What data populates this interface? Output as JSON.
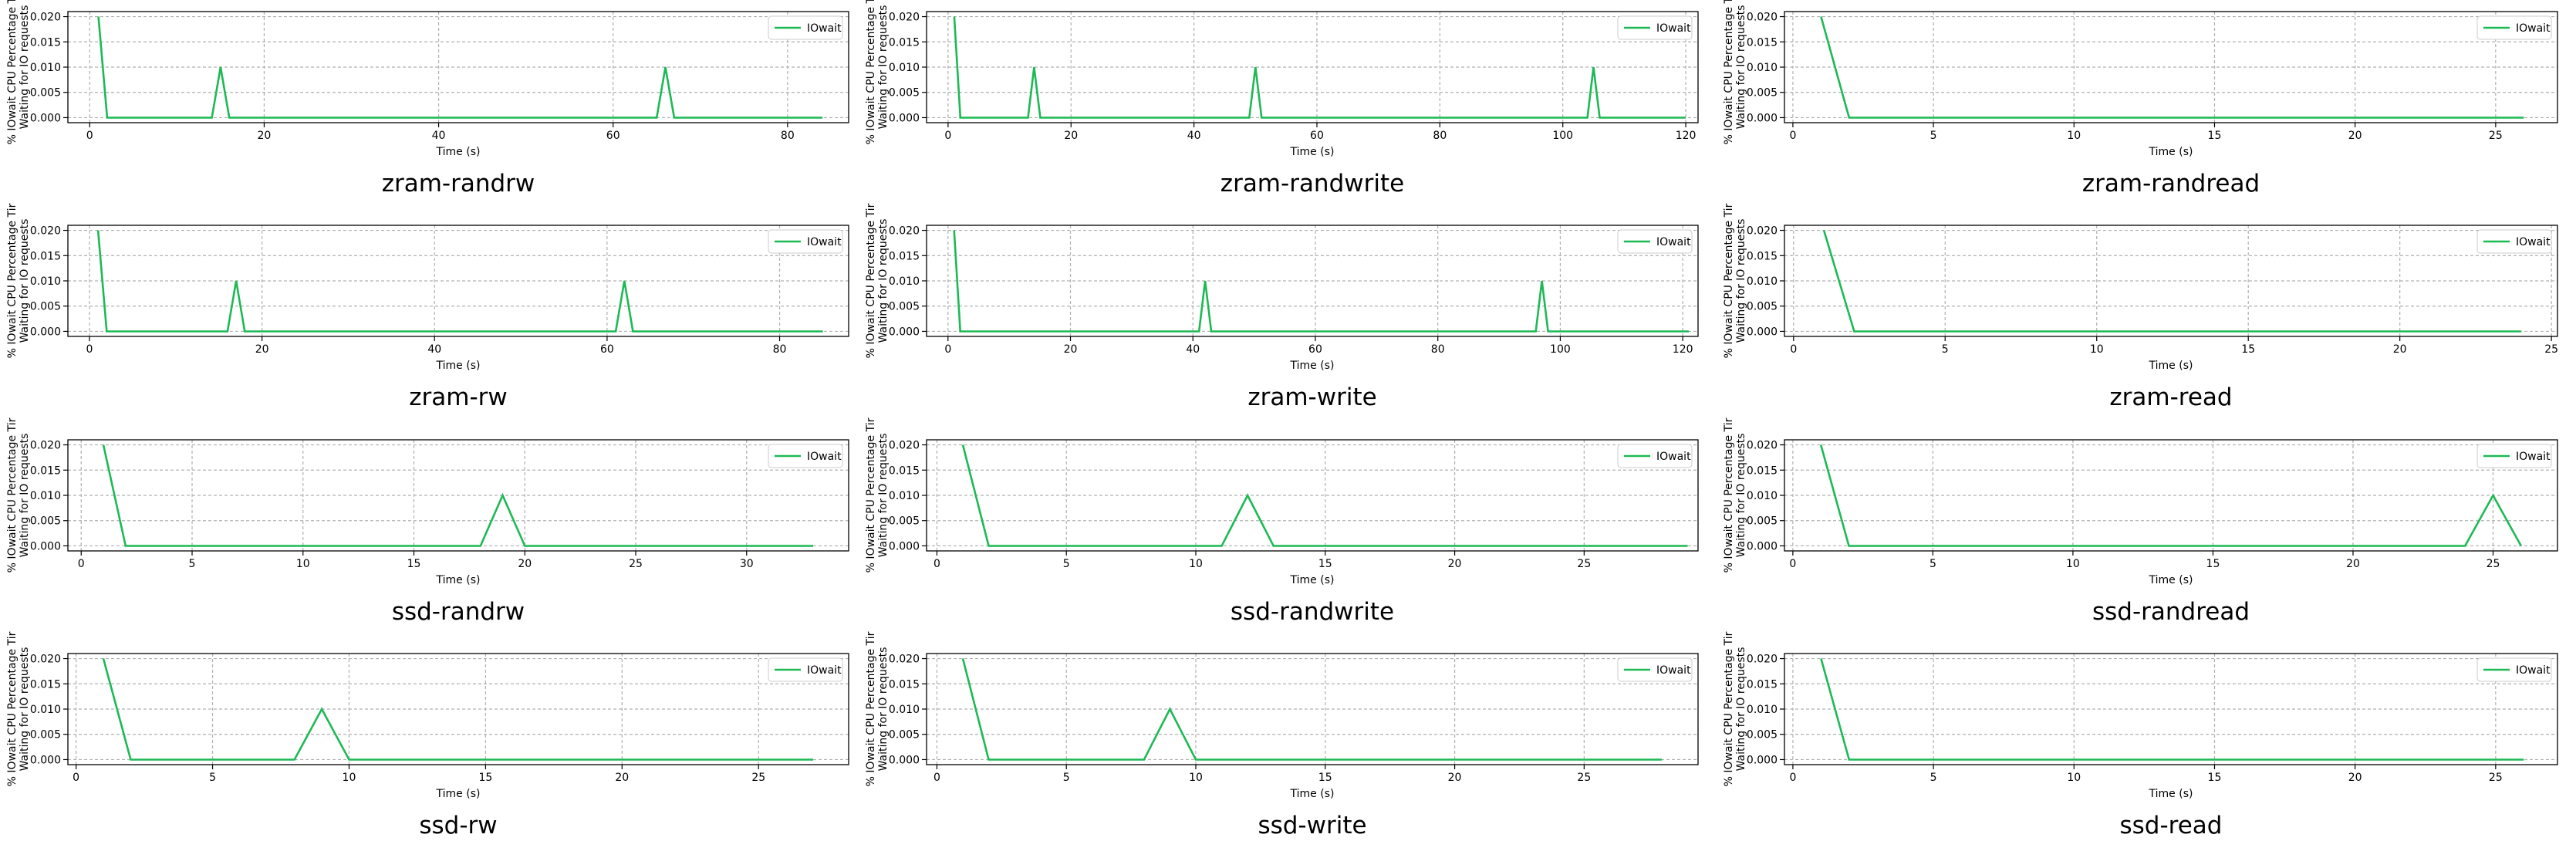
{
  "figure": {
    "common": {
      "xlabel": "Time (s)",
      "ylabel": [
        "% IOwait CPU Percentage Tir",
        "Waiting for IO requests"
      ],
      "legend": "IOwait",
      "legend_position": "top-right",
      "line_color": "#1db954",
      "grid": true
    }
  },
  "chart_data": [
    {
      "type": "line",
      "title": "zram-randrw",
      "xlabel": "Time (s)",
      "xlim": [
        -2.5,
        87
      ],
      "ylim": [
        -0.001,
        0.021
      ],
      "xticks": [
        0,
        20,
        40,
        60,
        80
      ],
      "yticks": [
        "0.000",
        "0.005",
        "0.010",
        "0.015",
        "0.020"
      ],
      "series": [
        {
          "name": "IOwait",
          "color": "#1db954",
          "x": [
            1,
            2,
            14,
            15,
            16,
            65,
            66,
            67,
            84
          ],
          "y": [
            0.02,
            0,
            0,
            0.01,
            0,
            0,
            0.01,
            0,
            0
          ]
        }
      ]
    },
    {
      "type": "line",
      "title": "zram-randwrite",
      "xlabel": "Time (s)",
      "xlim": [
        -3.5,
        122
      ],
      "ylim": [
        -0.001,
        0.021
      ],
      "xticks": [
        0,
        20,
        40,
        60,
        80,
        100,
        120
      ],
      "yticks": [
        "0.000",
        "0.005",
        "0.010",
        "0.015",
        "0.020"
      ],
      "series": [
        {
          "name": "IOwait",
          "color": "#1db954",
          "x": [
            1,
            2,
            13,
            14,
            15,
            49,
            50,
            51,
            104,
            105,
            106,
            120
          ],
          "y": [
            0.02,
            0,
            0,
            0.01,
            0,
            0,
            0.01,
            0,
            0,
            0.01,
            0,
            0
          ]
        }
      ]
    },
    {
      "type": "line",
      "title": "zram-randread",
      "xlabel": "Time (s)",
      "xlim": [
        -0.3,
        27.2
      ],
      "ylim": [
        -0.001,
        0.021
      ],
      "xticks": [
        0,
        5,
        10,
        15,
        20,
        25
      ],
      "yticks": [
        "0.000",
        "0.005",
        "0.010",
        "0.015",
        "0.020"
      ],
      "series": [
        {
          "name": "IOwait",
          "color": "#1db954",
          "x": [
            1,
            2,
            26
          ],
          "y": [
            0.02,
            0,
            0
          ]
        }
      ]
    },
    {
      "type": "line",
      "title": "zram-rw",
      "xlabel": "Time (s)",
      "xlim": [
        -2.5,
        88
      ],
      "ylim": [
        -0.001,
        0.021
      ],
      "xticks": [
        0,
        20,
        40,
        60,
        80
      ],
      "yticks": [
        "0.000",
        "0.005",
        "0.010",
        "0.015",
        "0.020"
      ],
      "series": [
        {
          "name": "IOwait",
          "color": "#1db954",
          "x": [
            1,
            2,
            16,
            17,
            18,
            61,
            62,
            63,
            85
          ],
          "y": [
            0.02,
            0,
            0,
            0.01,
            0,
            0,
            0.01,
            0,
            0
          ]
        }
      ]
    },
    {
      "type": "line",
      "title": "zram-write",
      "xlabel": "Time (s)",
      "xlim": [
        -3.5,
        122.5
      ],
      "ylim": [
        -0.001,
        0.021
      ],
      "xticks": [
        0,
        20,
        40,
        60,
        80,
        100,
        120
      ],
      "yticks": [
        "0.000",
        "0.005",
        "0.010",
        "0.015",
        "0.020"
      ],
      "series": [
        {
          "name": "IOwait",
          "color": "#1db954",
          "x": [
            1,
            2,
            41,
            42,
            43,
            96,
            97,
            98,
            121
          ],
          "y": [
            0.02,
            0,
            0,
            0.01,
            0,
            0,
            0.01,
            0,
            0
          ]
        }
      ]
    },
    {
      "type": "line",
      "title": "zram-read",
      "xlabel": "Time (s)",
      "xlim": [
        -0.3,
        25.2
      ],
      "ylim": [
        -0.001,
        0.021
      ],
      "xticks": [
        0,
        5,
        10,
        15,
        20,
        25
      ],
      "yticks": [
        "0.000",
        "0.005",
        "0.010",
        "0.015",
        "0.020"
      ],
      "series": [
        {
          "name": "IOwait",
          "color": "#1db954",
          "x": [
            1,
            2,
            24
          ],
          "y": [
            0.02,
            0,
            0
          ]
        }
      ]
    },
    {
      "type": "line",
      "title": "ssd-randrw",
      "xlabel": "Time (s)",
      "xlim": [
        -0.6,
        34.6
      ],
      "ylim": [
        -0.001,
        0.021
      ],
      "xticks": [
        0,
        5,
        10,
        15,
        20,
        25,
        30
      ],
      "yticks": [
        "0.000",
        "0.005",
        "0.010",
        "0.015",
        "0.020"
      ],
      "series": [
        {
          "name": "IOwait",
          "color": "#1db954",
          "x": [
            1,
            2,
            18,
            19,
            20,
            33
          ],
          "y": [
            0.02,
            0,
            0,
            0.01,
            0,
            0
          ]
        }
      ]
    },
    {
      "type": "line",
      "title": "ssd-randwrite",
      "xlabel": "Time (s)",
      "xlim": [
        -0.4,
        29.4
      ],
      "ylim": [
        -0.001,
        0.021
      ],
      "xticks": [
        0,
        5,
        10,
        15,
        20,
        25
      ],
      "yticks": [
        "0.000",
        "0.005",
        "0.010",
        "0.015",
        "0.020"
      ],
      "series": [
        {
          "name": "IOwait",
          "color": "#1db954",
          "x": [
            1,
            2,
            11,
            12,
            13,
            29
          ],
          "y": [
            0.02,
            0,
            0,
            0.01,
            0,
            0
          ]
        }
      ]
    },
    {
      "type": "line",
      "title": "ssd-randread",
      "xlabel": "Time (s)",
      "xlim": [
        -0.3,
        27.3
      ],
      "ylim": [
        -0.001,
        0.021
      ],
      "xticks": [
        0,
        5,
        10,
        15,
        20,
        25
      ],
      "yticks": [
        "0.000",
        "0.005",
        "0.010",
        "0.015",
        "0.020"
      ],
      "series": [
        {
          "name": "IOwait",
          "color": "#1db954",
          "x": [
            1,
            2,
            24,
            25,
            26
          ],
          "y": [
            0.02,
            0,
            0,
            0.01,
            0
          ]
        }
      ]
    },
    {
      "type": "line",
      "title": "ssd-rw",
      "xlabel": "Time (s)",
      "xlim": [
        -0.3,
        28.3
      ],
      "ylim": [
        -0.001,
        0.021
      ],
      "xticks": [
        0,
        5,
        10,
        15,
        20,
        25
      ],
      "yticks": [
        "0.000",
        "0.005",
        "0.010",
        "0.015",
        "0.020"
      ],
      "series": [
        {
          "name": "IOwait",
          "color": "#1db954",
          "x": [
            1,
            2,
            8,
            9,
            10,
            27
          ],
          "y": [
            0.02,
            0,
            0,
            0.01,
            0,
            0
          ]
        }
      ]
    },
    {
      "type": "line",
      "title": "ssd-write",
      "xlabel": "Time (s)",
      "xlim": [
        -0.4,
        29.4
      ],
      "ylim": [
        -0.001,
        0.021
      ],
      "xticks": [
        0,
        5,
        10,
        15,
        20,
        25
      ],
      "yticks": [
        "0.000",
        "0.005",
        "0.010",
        "0.015",
        "0.020"
      ],
      "series": [
        {
          "name": "IOwait",
          "color": "#1db954",
          "x": [
            1,
            2,
            8,
            9,
            10,
            28
          ],
          "y": [
            0.02,
            0,
            0,
            0.01,
            0,
            0
          ]
        }
      ]
    },
    {
      "type": "line",
      "title": "ssd-read",
      "xlabel": "Time (s)",
      "xlim": [
        -0.3,
        27.2
      ],
      "ylim": [
        -0.001,
        0.021
      ],
      "xticks": [
        0,
        5,
        10,
        15,
        20,
        25
      ],
      "yticks": [
        "0.000",
        "0.005",
        "0.010",
        "0.015",
        "0.020"
      ],
      "series": [
        {
          "name": "IOwait",
          "color": "#1db954",
          "x": [
            1,
            2,
            26
          ],
          "y": [
            0.02,
            0,
            0
          ]
        }
      ]
    }
  ]
}
